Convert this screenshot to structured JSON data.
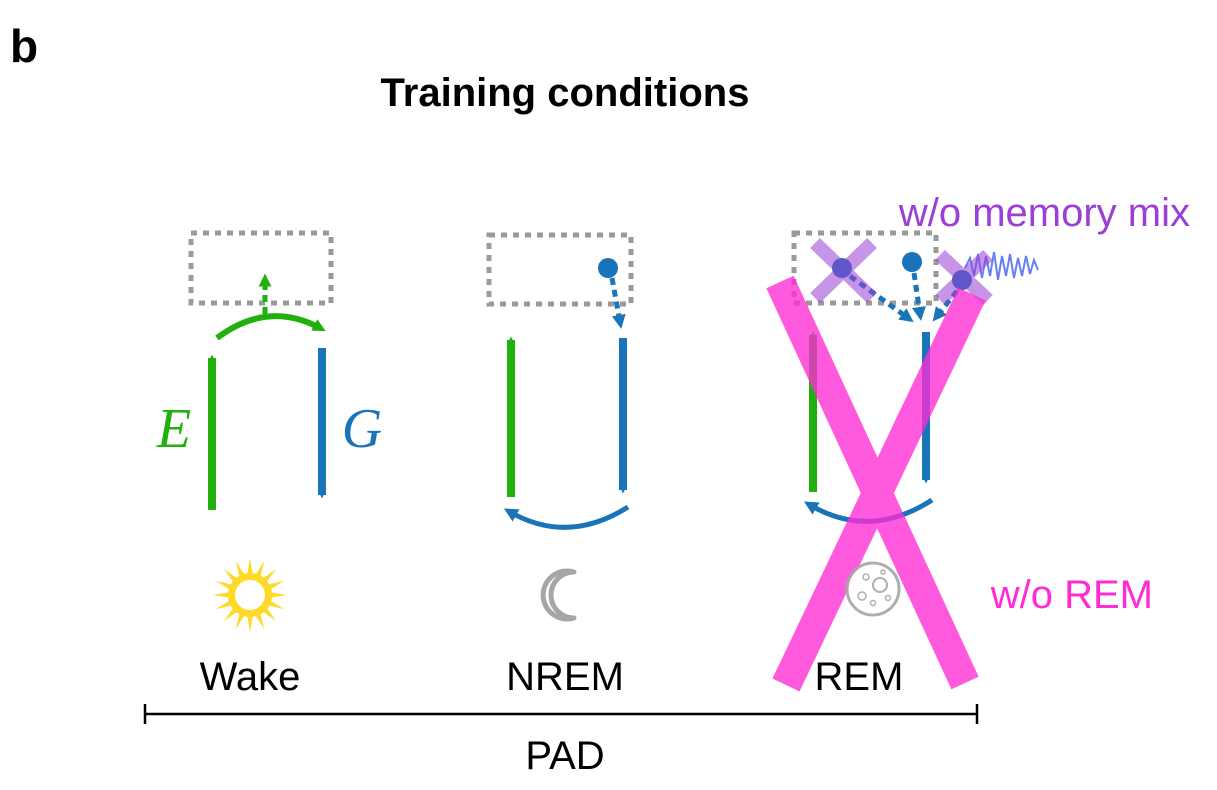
{
  "panel_letter": "b",
  "title": "Training conditions",
  "encoder_label": "E",
  "generator_label": "G",
  "phases": [
    {
      "label": "Wake",
      "icon": "sun-icon"
    },
    {
      "label": "NREM",
      "icon": "crescent-moon-icon"
    },
    {
      "label": "REM",
      "icon": "full-moon-icon"
    }
  ],
  "timeline_label": "PAD",
  "annotations": {
    "no_memory_mix": "w/o memory mix",
    "no_rem": "w/o REM"
  },
  "colors": {
    "encoder": "#22b00e",
    "generator": "#1a74ba",
    "latent_box": "#999999",
    "memory_mix_ablation": "#9b3fd6",
    "rem_ablation": "#ff2bd6",
    "sun": "#ffd927",
    "moon": "#a6a6a6",
    "noise": "#3355ee"
  }
}
